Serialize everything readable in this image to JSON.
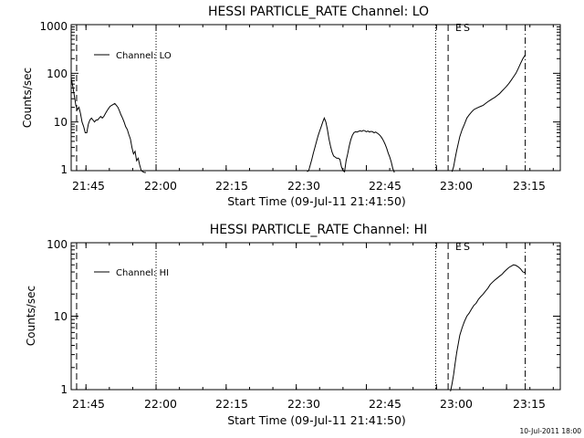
{
  "footer_timestamp": "10-Jul-2011 18:00",
  "chart_data": [
    {
      "type": "line",
      "title": "HESSI PARTICLE_RATE Channel: LO",
      "xlabel": "Start Time (09-Jul-11 21:41:50)",
      "ylabel": "Counts/sec",
      "y_scale": "log",
      "ylim": [
        1,
        1000
      ],
      "y_ticks": [
        1,
        10,
        100,
        1000
      ],
      "y_tick_labels": [
        "1",
        "10",
        "100",
        "1000"
      ],
      "x_range": [
        "21:41:50",
        "23:26:30"
      ],
      "x_ticks": [
        "21:45",
        "22:00",
        "22:15",
        "22:30",
        "22:45",
        "23:00",
        "23:15"
      ],
      "legend": {
        "position": "top-left",
        "entries": [
          "Channel: LO"
        ]
      },
      "event_labels": [
        "E",
        "S"
      ],
      "markers": [
        {
          "time": "21:43:00",
          "style": "dashed"
        },
        {
          "time": "22:00:00",
          "style": "dotted"
        },
        {
          "time": "22:59:50",
          "style": "dotted"
        },
        {
          "time": "23:02:30",
          "style": "dashed"
        },
        {
          "time": "23:19:00",
          "style": "dashdot"
        }
      ],
      "segments": [
        {
          "name": "Channel: LO",
          "x": [
            "21:41:50",
            "21:42:10",
            "21:42:30",
            "21:42:50",
            "21:43:10",
            "21:43:30",
            "21:43:50",
            "21:44:10",
            "21:44:30",
            "21:44:50",
            "21:45:10",
            "21:45:30",
            "21:45:50",
            "21:46:10",
            "21:46:30",
            "21:46:50",
            "21:47:10",
            "21:47:30",
            "21:47:50",
            "21:48:10",
            "21:48:30",
            "21:48:50",
            "21:49:10",
            "21:49:30",
            "21:49:50",
            "21:50:10",
            "21:50:30",
            "21:50:50",
            "21:51:10",
            "21:51:30",
            "21:51:50",
            "21:52:10",
            "21:52:30",
            "21:52:50",
            "21:53:10",
            "21:53:30",
            "21:53:50",
            "21:54:10",
            "21:54:30",
            "21:54:50",
            "21:55:10",
            "21:55:30",
            "21:55:50",
            "21:56:10",
            "21:56:30",
            "21:56:50",
            "21:57:10",
            "21:57:30",
            "21:57:50"
          ],
          "y": [
            80,
            55,
            35,
            22,
            18,
            20,
            15,
            10,
            8,
            6,
            6,
            9,
            11,
            12,
            11,
            10,
            11,
            11,
            12,
            13,
            12,
            13,
            15,
            17,
            19,
            21,
            22,
            23,
            24,
            22,
            20,
            17,
            14,
            12,
            10,
            8,
            7,
            5.5,
            4.5,
            3,
            2.2,
            2.5,
            1.6,
            1.8,
            1.3,
            1.0,
            0.95,
            0.9,
            0.9
          ]
        },
        {
          "name": "Channel: LO",
          "x": [
            "22:32:20",
            "22:32:40",
            "22:33:00",
            "22:33:20",
            "22:33:40",
            "22:34:00",
            "22:34:20",
            "22:34:40",
            "22:35:00",
            "22:35:20",
            "22:35:40",
            "22:36:00",
            "22:36:20",
            "22:36:40",
            "22:37:00",
            "22:37:20",
            "22:37:40",
            "22:38:00",
            "22:38:20",
            "22:38:40",
            "22:39:00",
            "22:39:20",
            "22:39:40",
            "22:40:00",
            "22:40:20",
            "22:40:40",
            "22:41:00",
            "22:41:20",
            "22:41:40",
            "22:42:00",
            "22:42:20",
            "22:42:40",
            "22:43:00",
            "22:43:20",
            "22:43:40",
            "22:44:00",
            "22:44:20",
            "22:44:40",
            "22:45:00",
            "22:45:20",
            "22:45:40",
            "22:46:00",
            "22:46:20",
            "22:46:40",
            "22:47:00",
            "22:47:20",
            "22:47:40",
            "22:48:00",
            "22:48:20",
            "22:48:40",
            "22:49:00",
            "22:49:20",
            "22:49:40",
            "22:50:00",
            "22:50:20",
            "22:50:40",
            "22:51:00"
          ],
          "y": [
            0.95,
            1.0,
            1.3,
            1.7,
            2.3,
            3.0,
            4.0,
            5.2,
            6.5,
            8,
            10,
            12,
            10,
            7,
            4.5,
            3.2,
            2.4,
            2.0,
            1.9,
            1.8,
            1.8,
            1.7,
            1.2,
            1.0,
            0.95,
            1.6,
            2.2,
            3.2,
            4.3,
            5.3,
            6.0,
            6.3,
            6.2,
            6.4,
            6.6,
            6.4,
            6.7,
            6.6,
            6.3,
            6.5,
            6.2,
            6.4,
            6.3,
            6.0,
            6.2,
            5.9,
            5.6,
            5.2,
            4.7,
            4.1,
            3.5,
            2.9,
            2.3,
            1.9,
            1.5,
            1.1,
            0.9
          ]
        },
        {
          "name": "Channel: LO",
          "x": [
            "23:03:20",
            "23:03:40",
            "23:04:00",
            "23:04:20",
            "23:04:40",
            "23:05:00",
            "23:05:30",
            "23:06:00",
            "23:06:30",
            "23:07:00",
            "23:07:30",
            "23:08:00",
            "23:08:30",
            "23:09:00",
            "23:09:30",
            "23:10:00",
            "23:10:30",
            "23:11:00",
            "23:11:30",
            "23:12:00",
            "23:12:30",
            "23:13:00",
            "23:13:30",
            "23:14:00",
            "23:14:30",
            "23:15:00",
            "23:15:30",
            "23:16:00",
            "23:16:30",
            "23:17:00",
            "23:17:30",
            "23:18:00",
            "23:18:30",
            "23:19:00"
          ],
          "y": [
            0.95,
            1.2,
            1.8,
            2.6,
            3.6,
            5,
            7,
            9,
            12,
            14,
            16,
            18,
            19,
            20,
            21,
            22,
            24,
            26,
            28,
            30,
            32,
            35,
            38,
            43,
            48,
            54,
            62,
            72,
            85,
            100,
            125,
            160,
            200,
            240
          ]
        }
      ]
    },
    {
      "type": "line",
      "title": "HESSI PARTICLE_RATE Channel: HI",
      "xlabel": "Start Time (09-Jul-11 21:41:50)",
      "ylabel": "Counts/sec",
      "y_scale": "log",
      "ylim": [
        1,
        100
      ],
      "y_ticks": [
        1,
        10,
        100
      ],
      "y_tick_labels": [
        "1",
        "10",
        "100"
      ],
      "x_range": [
        "21:41:50",
        "23:26:30"
      ],
      "x_ticks": [
        "21:45",
        "22:00",
        "22:15",
        "22:30",
        "22:45",
        "23:00",
        "23:15"
      ],
      "legend": {
        "position": "top-left",
        "entries": [
          "Channel: HI"
        ]
      },
      "event_labels": [
        "E",
        "S"
      ],
      "markers": [
        {
          "time": "21:43:00",
          "style": "dashed"
        },
        {
          "time": "22:00:00",
          "style": "dotted"
        },
        {
          "time": "22:59:50",
          "style": "dotted"
        },
        {
          "time": "23:02:30",
          "style": "dashed"
        },
        {
          "time": "23:19:00",
          "style": "dashdot"
        }
      ],
      "segments": [
        {
          "name": "Channel: HI",
          "x": [
            "23:03:00",
            "23:03:20",
            "23:03:40",
            "23:04:00",
            "23:04:20",
            "23:04:40",
            "23:05:00",
            "23:05:30",
            "23:06:00",
            "23:06:30",
            "23:07:00",
            "23:07:30",
            "23:08:00",
            "23:08:30",
            "23:09:00",
            "23:09:30",
            "23:10:00",
            "23:10:30",
            "23:11:00",
            "23:11:30",
            "23:12:00",
            "23:12:30",
            "23:13:00",
            "23:13:30",
            "23:14:00",
            "23:14:30",
            "23:15:00",
            "23:15:30",
            "23:16:00",
            "23:16:30",
            "23:17:00",
            "23:17:30",
            "23:18:00",
            "23:18:30",
            "23:19:00"
          ],
          "y": [
            0.95,
            1.2,
            1.6,
            2.3,
            3.2,
            4.2,
            5.5,
            7,
            8.5,
            10,
            11,
            12.5,
            14,
            15,
            17,
            18.5,
            20,
            22,
            24,
            27,
            29,
            31,
            33,
            35,
            37,
            40,
            43,
            46,
            48,
            50,
            49,
            47,
            44,
            40,
            39
          ]
        }
      ]
    }
  ]
}
